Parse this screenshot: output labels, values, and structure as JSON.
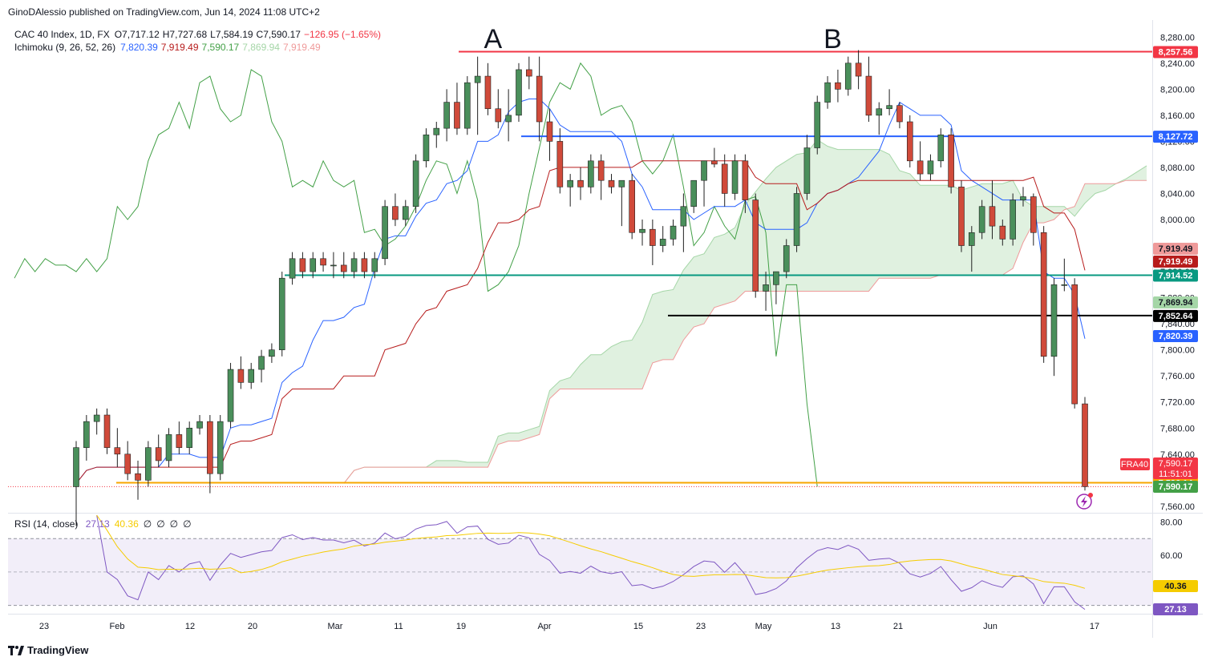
{
  "publisher": "GinoDAlessio published on TradingView.com, Jun 14, 2024 11:08 UTC+2",
  "footer_brand": "TradingView",
  "legend": {
    "symbol": "CAC 40 Index, 1D, FX",
    "ohlc": {
      "o": "O7,717.12",
      "h": "H7,727.68",
      "l": "L7,584.19",
      "c": "C7,590.17",
      "chg": "−126.95 (−1.65%)"
    },
    "ichimoku_label": "Ichimoku (9, 26, 52, 26)",
    "ichimoku_values": [
      {
        "text": "7,820.39",
        "color": "#2962ff"
      },
      {
        "text": "7,919.49",
        "color": "#b71c1c"
      },
      {
        "text": "7,590.17",
        "color": "#43a047"
      },
      {
        "text": "7,869.94",
        "color": "#a5d6a7"
      },
      {
        "text": "7,919.49",
        "color": "#ef9a9a"
      }
    ],
    "rsi_label": "RSI (14, close)",
    "rsi_values": [
      {
        "text": "27.13",
        "color": "#7e57c2"
      },
      {
        "text": "40.36",
        "color": "#f5cc00"
      },
      {
        "text": "∅",
        "color": "#131722"
      },
      {
        "text": "∅",
        "color": "#131722"
      },
      {
        "text": "∅",
        "color": "#131722"
      },
      {
        "text": "∅",
        "color": "#131722"
      }
    ]
  },
  "chart_data": {
    "type": "candlestick",
    "title": "CAC 40 Index, 1D, FX",
    "annotations": [
      {
        "text": "A",
        "date": "2024-03-27"
      },
      {
        "text": "B",
        "date": "2024-05-16"
      }
    ],
    "price_ticks": [
      "8,280.00",
      "8,240.00",
      "8,200.00",
      "8,160.00",
      "8,120.00",
      "8,080.00",
      "8,040.00",
      "8,000.00",
      "7,960.00",
      "7,920.00",
      "7,880.00",
      "7,840.00",
      "7,800.00",
      "7,760.00",
      "7,720.00",
      "7,680.00",
      "7,640.00",
      "7,600.00",
      "7,560.00"
    ],
    "price_range": [
      7550,
      8300
    ],
    "x_ticks": [
      "23",
      "Feb",
      "12",
      "20",
      "Mar",
      "11",
      "19",
      "Apr",
      "15",
      "23",
      "May",
      "13",
      "21",
      "Jun",
      "17"
    ],
    "rsi_ticks": [
      "80.00",
      "60.00"
    ],
    "rsi_range": [
      25,
      85
    ],
    "horizontal_levels": [
      {
        "value": 8257.56,
        "label": "8,257.56",
        "color": "#f23645"
      },
      {
        "value": 8127.72,
        "label": "8,127.72",
        "color": "#2962ff"
      },
      {
        "value": 7914.52,
        "label": "7,914.52",
        "color": "#089981"
      },
      {
        "value": 7852.64,
        "label": "7,852.64",
        "color": "#000000"
      },
      {
        "value": 7596.14,
        "label": "7,596.14",
        "color": "#f7a600"
      }
    ],
    "price_badges": [
      {
        "label": "7,919.49",
        "value": 7919.49,
        "color": "#ef9a9a"
      },
      {
        "label": "7,919.49",
        "value": 7919.49,
        "color": "#b71c1c"
      },
      {
        "label": "7,869.94",
        "value": 7869.94,
        "color": "#a5d6a7"
      },
      {
        "label": "7,820.39",
        "value": 7820.39,
        "color": "#2962ff"
      },
      {
        "label": "7,590.17",
        "value": 7590.17,
        "color": "#43a047"
      }
    ],
    "last_price": {
      "symbol": "FRA40",
      "price": "7,590.17",
      "countdown": "11:51:01",
      "color": "#f23645"
    },
    "rsi_badges": [
      {
        "label": "40.36",
        "color": "#f5cc00"
      },
      {
        "label": "27.13",
        "color": "#7e57c2"
      }
    ],
    "candles": [
      {
        "d": "01-25",
        "o": 7590,
        "h": 7660,
        "l": 7530,
        "c": 7650
      },
      {
        "d": "01-26",
        "o": 7650,
        "h": 7700,
        "l": 7630,
        "c": 7690
      },
      {
        "d": "01-29",
        "o": 7690,
        "h": 7710,
        "l": 7670,
        "c": 7700
      },
      {
        "d": "01-30",
        "o": 7700,
        "h": 7710,
        "l": 7640,
        "c": 7650
      },
      {
        "d": "01-31",
        "o": 7650,
        "h": 7680,
        "l": 7620,
        "c": 7640
      },
      {
        "d": "02-01",
        "o": 7640,
        "h": 7660,
        "l": 7600,
        "c": 7610
      },
      {
        "d": "02-02",
        "o": 7610,
        "h": 7630,
        "l": 7570,
        "c": 7600
      },
      {
        "d": "02-05",
        "o": 7600,
        "h": 7660,
        "l": 7590,
        "c": 7650
      },
      {
        "d": "02-06",
        "o": 7650,
        "h": 7670,
        "l": 7620,
        "c": 7630
      },
      {
        "d": "02-07",
        "o": 7630,
        "h": 7680,
        "l": 7620,
        "c": 7670
      },
      {
        "d": "02-08",
        "o": 7670,
        "h": 7690,
        "l": 7640,
        "c": 7650
      },
      {
        "d": "02-09",
        "o": 7650,
        "h": 7690,
        "l": 7640,
        "c": 7680
      },
      {
        "d": "02-12",
        "o": 7680,
        "h": 7700,
        "l": 7670,
        "c": 7690
      },
      {
        "d": "02-13",
        "o": 7690,
        "h": 7700,
        "l": 7580,
        "c": 7610
      },
      {
        "d": "02-14",
        "o": 7610,
        "h": 7700,
        "l": 7600,
        "c": 7690
      },
      {
        "d": "02-15",
        "o": 7690,
        "h": 7780,
        "l": 7680,
        "c": 7770
      },
      {
        "d": "02-16",
        "o": 7770,
        "h": 7790,
        "l": 7740,
        "c": 7750
      },
      {
        "d": "02-19",
        "o": 7750,
        "h": 7780,
        "l": 7740,
        "c": 7770
      },
      {
        "d": "02-20",
        "o": 7770,
        "h": 7800,
        "l": 7750,
        "c": 7790
      },
      {
        "d": "02-21",
        "o": 7790,
        "h": 7810,
        "l": 7780,
        "c": 7800
      },
      {
        "d": "02-22",
        "o": 7800,
        "h": 7920,
        "l": 7790,
        "c": 7910
      },
      {
        "d": "02-23",
        "o": 7910,
        "h": 7950,
        "l": 7900,
        "c": 7940
      },
      {
        "d": "02-26",
        "o": 7940,
        "h": 7950,
        "l": 7910,
        "c": 7920
      },
      {
        "d": "02-27",
        "o": 7920,
        "h": 7950,
        "l": 7910,
        "c": 7940
      },
      {
        "d": "02-28",
        "o": 7940,
        "h": 7950,
        "l": 7920,
        "c": 7930
      },
      {
        "d": "02-29",
        "o": 7930,
        "h": 7950,
        "l": 7910,
        "c": 7930
      },
      {
        "d": "03-01",
        "o": 7930,
        "h": 7950,
        "l": 7910,
        "c": 7920
      },
      {
        "d": "03-04",
        "o": 7920,
        "h": 7950,
        "l": 7910,
        "c": 7940
      },
      {
        "d": "03-05",
        "o": 7940,
        "h": 7950,
        "l": 7910,
        "c": 7920
      },
      {
        "d": "03-06",
        "o": 7920,
        "h": 7950,
        "l": 7910,
        "c": 7940
      },
      {
        "d": "03-07",
        "o": 7940,
        "h": 8030,
        "l": 7930,
        "c": 8020
      },
      {
        "d": "03-08",
        "o": 8020,
        "h": 8040,
        "l": 7990,
        "c": 8000
      },
      {
        "d": "03-11",
        "o": 8000,
        "h": 8030,
        "l": 7990,
        "c": 8020
      },
      {
        "d": "03-12",
        "o": 8020,
        "h": 8100,
        "l": 8010,
        "c": 8090
      },
      {
        "d": "03-13",
        "o": 8090,
        "h": 8140,
        "l": 8080,
        "c": 8130
      },
      {
        "d": "03-14",
        "o": 8130,
        "h": 8150,
        "l": 8110,
        "c": 8140
      },
      {
        "d": "03-15",
        "o": 8140,
        "h": 8200,
        "l": 8120,
        "c": 8180
      },
      {
        "d": "03-18",
        "o": 8180,
        "h": 8210,
        "l": 8130,
        "c": 8140
      },
      {
        "d": "03-19",
        "o": 8140,
        "h": 8220,
        "l": 8130,
        "c": 8210
      },
      {
        "d": "03-20",
        "o": 8210,
        "h": 8250,
        "l": 8130,
        "c": 8220
      },
      {
        "d": "03-21",
        "o": 8220,
        "h": 8240,
        "l": 8160,
        "c": 8170
      },
      {
        "d": "03-22",
        "o": 8170,
        "h": 8200,
        "l": 8140,
        "c": 8150
      },
      {
        "d": "03-25",
        "o": 8150,
        "h": 8200,
        "l": 8120,
        "c": 8160
      },
      {
        "d": "03-26",
        "o": 8160,
        "h": 8240,
        "l": 8150,
        "c": 8230
      },
      {
        "d": "03-27",
        "o": 8230,
        "h": 8250,
        "l": 8200,
        "c": 8220
      },
      {
        "d": "03-28",
        "o": 8220,
        "h": 8250,
        "l": 8120,
        "c": 8150
      },
      {
        "d": "04-02",
        "o": 8150,
        "h": 8170,
        "l": 8090,
        "c": 8120
      },
      {
        "d": "04-03",
        "o": 8120,
        "h": 8140,
        "l": 8040,
        "c": 8050
      },
      {
        "d": "04-04",
        "o": 8050,
        "h": 8070,
        "l": 8020,
        "c": 8060
      },
      {
        "d": "04-05",
        "o": 8060,
        "h": 8080,
        "l": 8030,
        "c": 8050
      },
      {
        "d": "04-08",
        "o": 8050,
        "h": 8100,
        "l": 8040,
        "c": 8090
      },
      {
        "d": "04-09",
        "o": 8090,
        "h": 8100,
        "l": 8030,
        "c": 8060
      },
      {
        "d": "04-10",
        "o": 8060,
        "h": 8070,
        "l": 8040,
        "c": 8050
      },
      {
        "d": "04-11",
        "o": 8050,
        "h": 8060,
        "l": 7990,
        "c": 8060
      },
      {
        "d": "04-12",
        "o": 8060,
        "h": 8070,
        "l": 7970,
        "c": 7980
      },
      {
        "d": "04-15",
        "o": 7980,
        "h": 8000,
        "l": 7960,
        "c": 7985
      },
      {
        "d": "04-16",
        "o": 7985,
        "h": 8000,
        "l": 7930,
        "c": 7960
      },
      {
        "d": "04-17",
        "o": 7960,
        "h": 7990,
        "l": 7950,
        "c": 7970
      },
      {
        "d": "04-18",
        "o": 7970,
        "h": 8000,
        "l": 7960,
        "c": 7990
      },
      {
        "d": "04-19",
        "o": 7990,
        "h": 8040,
        "l": 7950,
        "c": 8020
      },
      {
        "d": "04-22",
        "o": 8020,
        "h": 8060,
        "l": 8010,
        "c": 8060
      },
      {
        "d": "04-23",
        "o": 8060,
        "h": 8090,
        "l": 8020,
        "c": 8090
      },
      {
        "d": "04-24",
        "o": 8090,
        "h": 8110,
        "l": 8080,
        "c": 8085
      },
      {
        "d": "04-25",
        "o": 8085,
        "h": 8100,
        "l": 8020,
        "c": 8040
      },
      {
        "d": "04-26",
        "o": 8040,
        "h": 8100,
        "l": 8030,
        "c": 8090
      },
      {
        "d": "04-29",
        "o": 8090,
        "h": 8100,
        "l": 8010,
        "c": 8030
      },
      {
        "d": "04-30",
        "o": 8030,
        "h": 8040,
        "l": 7880,
        "c": 7890
      },
      {
        "d": "05-02",
        "o": 7890,
        "h": 7920,
        "l": 7860,
        "c": 7900
      },
      {
        "d": "05-03",
        "o": 7900,
        "h": 7920,
        "l": 7870,
        "c": 7920
      },
      {
        "d": "05-06",
        "o": 7920,
        "h": 7970,
        "l": 7910,
        "c": 7960
      },
      {
        "d": "05-07",
        "o": 7960,
        "h": 8050,
        "l": 7950,
        "c": 8040
      },
      {
        "d": "05-08",
        "o": 8040,
        "h": 8130,
        "l": 8030,
        "c": 8110
      },
      {
        "d": "05-09",
        "o": 8110,
        "h": 8190,
        "l": 8100,
        "c": 8180
      },
      {
        "d": "05-10",
        "o": 8180,
        "h": 8220,
        "l": 8170,
        "c": 8210
      },
      {
        "d": "05-13",
        "o": 8210,
        "h": 8230,
        "l": 8180,
        "c": 8200
      },
      {
        "d": "05-14",
        "o": 8200,
        "h": 8250,
        "l": 8190,
        "c": 8240
      },
      {
        "d": "05-15",
        "o": 8240,
        "h": 8260,
        "l": 8200,
        "c": 8220
      },
      {
        "d": "05-16",
        "o": 8220,
        "h": 8250,
        "l": 8150,
        "c": 8160
      },
      {
        "d": "05-17",
        "o": 8160,
        "h": 8180,
        "l": 8130,
        "c": 8170
      },
      {
        "d": "05-20",
        "o": 8170,
        "h": 8200,
        "l": 8160,
        "c": 8175
      },
      {
        "d": "05-21",
        "o": 8175,
        "h": 8180,
        "l": 8140,
        "c": 8150
      },
      {
        "d": "05-22",
        "o": 8150,
        "h": 8160,
        "l": 8080,
        "c": 8090
      },
      {
        "d": "05-23",
        "o": 8090,
        "h": 8120,
        "l": 8060,
        "c": 8070
      },
      {
        "d": "05-24",
        "o": 8070,
        "h": 8100,
        "l": 8060,
        "c": 8090
      },
      {
        "d": "05-27",
        "o": 8090,
        "h": 8140,
        "l": 8080,
        "c": 8130
      },
      {
        "d": "05-28",
        "o": 8130,
        "h": 8140,
        "l": 8040,
        "c": 8050
      },
      {
        "d": "05-29",
        "o": 8050,
        "h": 8060,
        "l": 7950,
        "c": 7960
      },
      {
        "d": "05-30",
        "o": 7960,
        "h": 7990,
        "l": 7920,
        "c": 7980
      },
      {
        "d": "05-31",
        "o": 7980,
        "h": 8030,
        "l": 7970,
        "c": 8020
      },
      {
        "d": "06-03",
        "o": 8020,
        "h": 8060,
        "l": 7970,
        "c": 7990
      },
      {
        "d": "06-04",
        "o": 7990,
        "h": 8000,
        "l": 7960,
        "c": 7970
      },
      {
        "d": "06-05",
        "o": 7970,
        "h": 8040,
        "l": 7960,
        "c": 8030
      },
      {
        "d": "06-06",
        "o": 8030,
        "h": 8050,
        "l": 8020,
        "c": 8035
      },
      {
        "d": "06-07",
        "o": 8035,
        "h": 8040,
        "l": 7960,
        "c": 7980
      },
      {
        "d": "06-10",
        "o": 7980,
        "h": 7990,
        "l": 7780,
        "c": 7790
      },
      {
        "d": "06-11",
        "o": 7790,
        "h": 7910,
        "l": 7760,
        "c": 7900
      },
      {
        "d": "06-12",
        "o": 7900,
        "h": 7940,
        "l": 7890,
        "c": 7900
      },
      {
        "d": "06-13",
        "o": 7900,
        "h": 7910,
        "l": 7710,
        "c": 7717.12
      },
      {
        "d": "06-14",
        "o": 7717.12,
        "h": 7727.68,
        "l": 7584.19,
        "c": 7590.17
      }
    ]
  }
}
